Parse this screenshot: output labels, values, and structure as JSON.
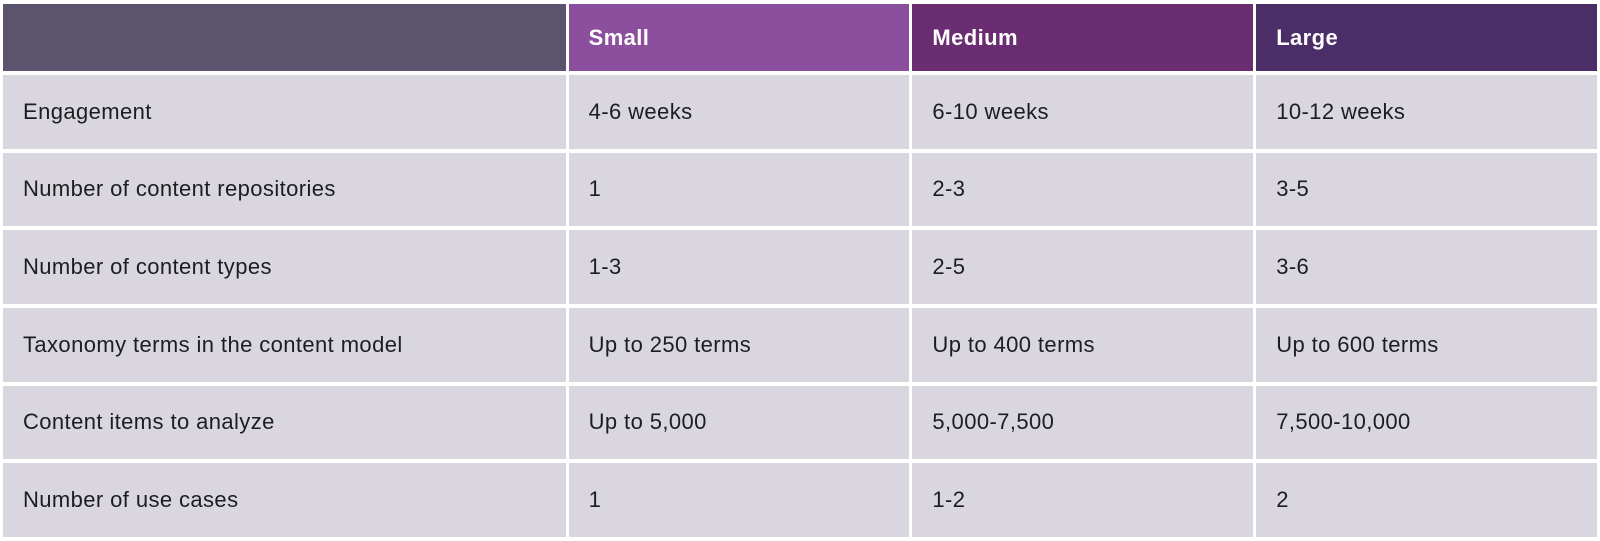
{
  "chart_data": {
    "type": "table",
    "title": "",
    "columns": [
      {
        "label": "",
        "header_bg": "#5c546e"
      },
      {
        "label": "Small",
        "header_bg": "#8b4f9e"
      },
      {
        "label": "Medium",
        "header_bg": "#6b2d72"
      },
      {
        "label": "Large",
        "header_bg": "#4b2d68"
      }
    ],
    "rows": [
      {
        "label": "Engagement",
        "values": [
          "4-6 weeks",
          "6-10 weeks",
          "10-12 weeks"
        ]
      },
      {
        "label": "Number of content repositories",
        "values": [
          "1",
          "2-3",
          "3-5"
        ]
      },
      {
        "label": "Number of content types",
        "values": [
          "1-3",
          "2-5",
          "3-6"
        ]
      },
      {
        "label": "Taxonomy terms in the content model",
        "values": [
          "Up to 250 terms",
          "Up to 400 terms",
          "Up to 600 terms"
        ]
      },
      {
        "label": "Content items to analyze",
        "values": [
          "Up to 5,000",
          "5,000-7,500",
          "7,500-10,000"
        ]
      },
      {
        "label": "Number of use cases",
        "values": [
          "1",
          "1-2",
          "2"
        ]
      }
    ],
    "colors": {
      "row_bg": "#d9d6e0",
      "gap": "#ffffff",
      "body_text": "#1d1d1f",
      "header_text": "#ffffff"
    }
  }
}
